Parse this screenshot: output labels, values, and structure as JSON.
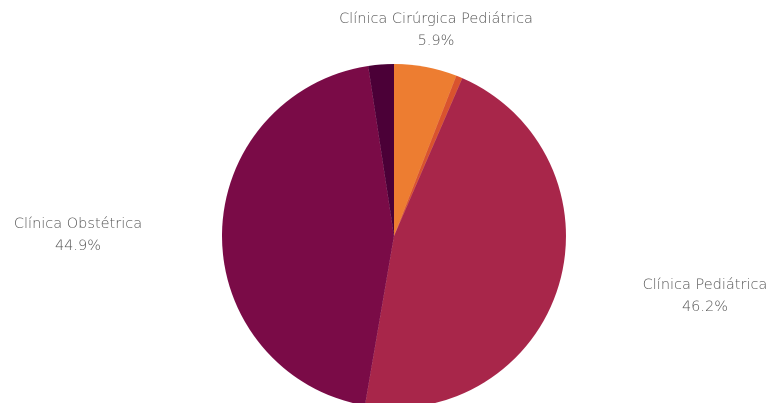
{
  "chart_data": {
    "type": "pie",
    "slices": [
      {
        "name": "Clínica Cirúrgica Pediátrica",
        "pct_label": "5.9%",
        "value": 5.9,
        "color": "#ED7D31"
      },
      {
        "name": "",
        "pct_label": "",
        "value": 0.6,
        "color": "#D9532E"
      },
      {
        "name": "Clínica Pediátrica",
        "pct_label": "46.2%",
        "value": 46.2,
        "color": "#A8264A"
      },
      {
        "name": "Clínica Obstétrica",
        "pct_label": "44.9%",
        "value": 44.9,
        "color": "#7A0B47"
      },
      {
        "name": "",
        "pct_label": "",
        "value": 2.4,
        "color": "#4B0037"
      }
    ],
    "start_angle_deg": 0,
    "direction": "clockwise"
  }
}
